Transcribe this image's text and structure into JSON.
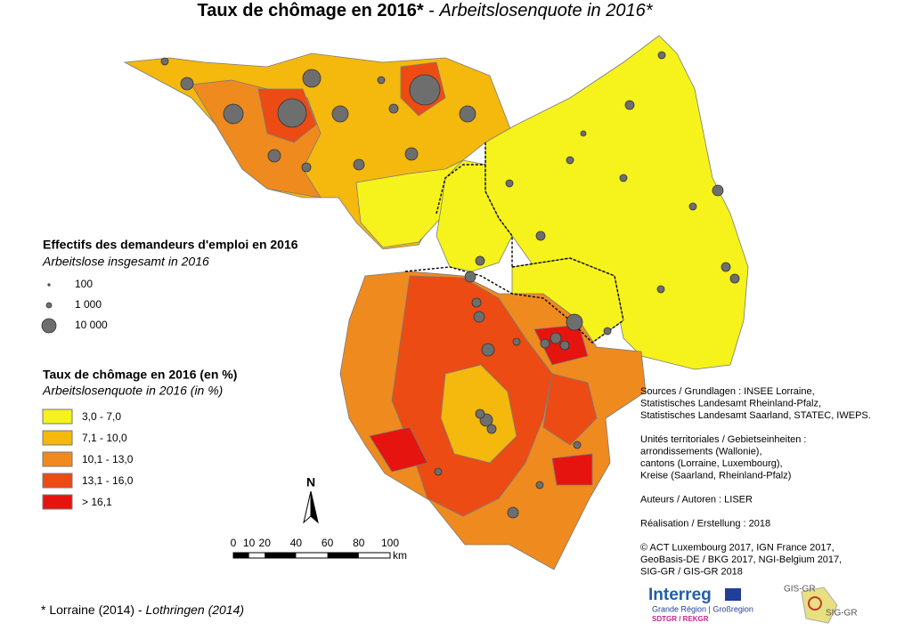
{
  "title": {
    "main": "Taux de chômage en 2016*",
    "separator": " - ",
    "sub": "Arbeitslosenquote in 2016*"
  },
  "size_legend": {
    "title": "Effectifs des demandeurs d'emploi en 2016",
    "subtitle": "Arbeitslose insgesamt in 2016",
    "items": [
      "100",
      "1 000",
      "10 000"
    ]
  },
  "rate_legend": {
    "title": "Taux de chômage en 2016 (en %)",
    "subtitle": "Arbeitslosenquote in 2016 (in %)",
    "classes": [
      {
        "label": "3,0 - 7,0",
        "color": "#f6f21c"
      },
      {
        "label": "7,1 - 10,0",
        "color": "#f5b80c"
      },
      {
        "label": "10,1 - 13,0",
        "color": "#ef8a1f"
      },
      {
        "label": "13,1 - 16,0",
        "color": "#ec4b14"
      },
      {
        "label": "> 16,1",
        "color": "#e6140f"
      }
    ]
  },
  "north": "N",
  "scale": {
    "ticks": [
      "0",
      "10",
      "20",
      "40",
      "60",
      "80",
      "100"
    ],
    "unit": "km"
  },
  "sources": [
    "Sources / Grundlagen : INSEE Lorraine,",
    "Statistisches Landesamt Rheinland-Pfalz,",
    "Statistisches Landesamt Saarland, STATEC, IWEPS.",
    "",
    "Unités territoriales / Gebietseinheiten :",
    "arrondissements (Wallonie),",
    "cantons (Lorraine, Luxembourg),",
    "Kreise (Saarland, Rheinland-Pfalz)",
    "",
    "Auteurs / Autoren : LISER",
    "",
    "Réalisation / Erstellung : 2018",
    "",
    "© ACT Luxembourg 2017, IGN France 2017,",
    "GeoBasis-DE / BKG 2017, NGI-Belgium 2017,",
    "SIG-GR / GIS-GR 2018"
  ],
  "footnote": {
    "main": "* Lorraine (2014)",
    "separator": " - ",
    "italic": "Lothringen (2014)"
  },
  "logos": {
    "interreg": "Interreg",
    "region": "Grande Région | Großregion",
    "sdtgr": "SDTGR / REKGR",
    "gis": "GIS-GR",
    "sig": "SIG-GR"
  }
}
